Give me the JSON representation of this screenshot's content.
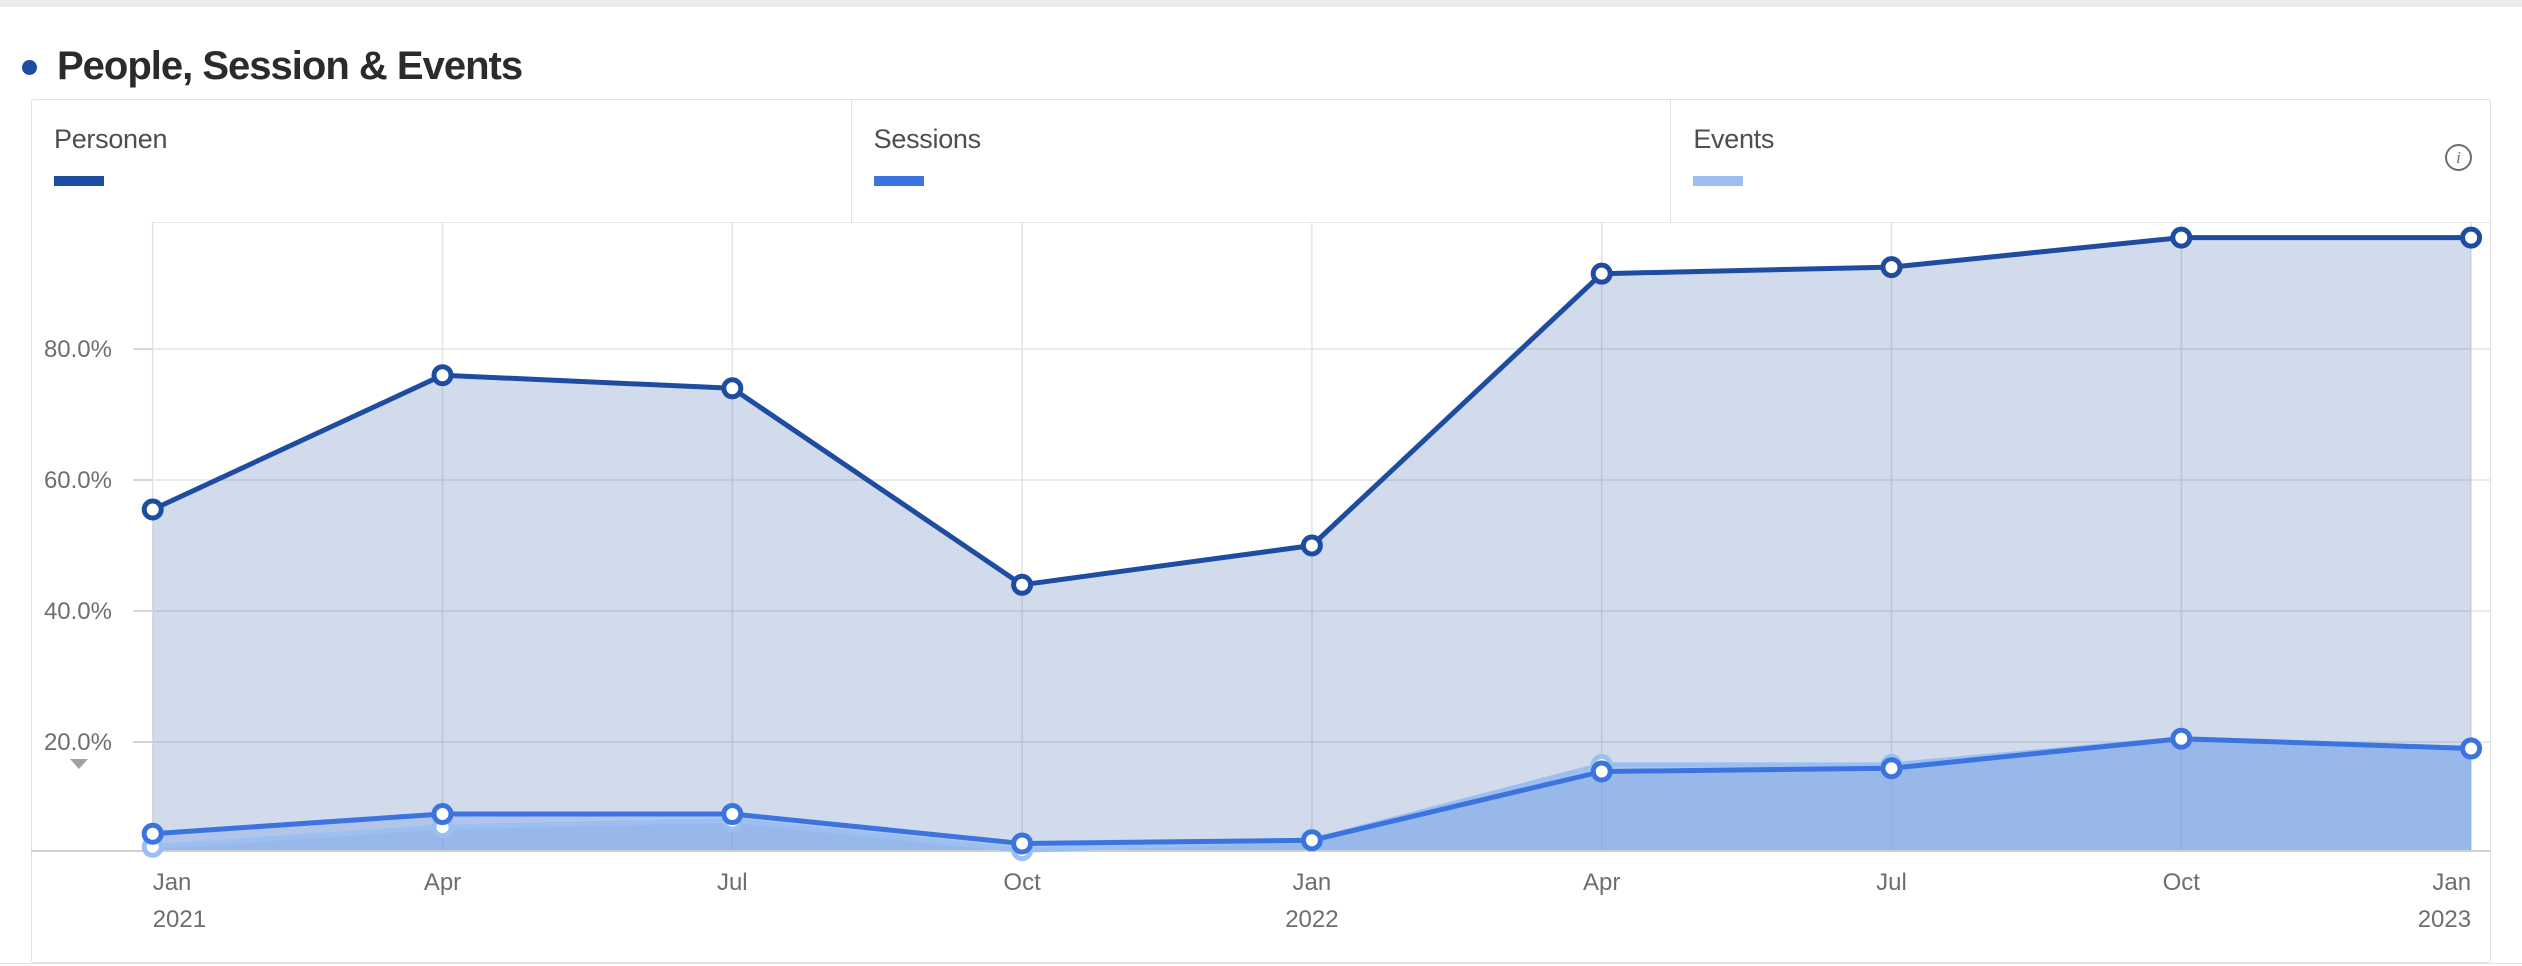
{
  "header": {
    "title": "People, Session & Events",
    "bullet_color": "#1e4ca1"
  },
  "legend": {
    "items": [
      {
        "label": "Personen",
        "color": "#1e4ca1"
      },
      {
        "label": "Sessions",
        "color": "#3b74de"
      },
      {
        "label": "Events",
        "color": "#9abff0"
      }
    ]
  },
  "info_icon": {
    "glyph": "i"
  },
  "chart_data": {
    "type": "area",
    "title": "People, Session & Events",
    "categories": [
      "Jan 2021",
      "Apr 2021",
      "Jul 2021",
      "Oct 2021",
      "Jan 2022",
      "Apr 2022",
      "Jul 2022",
      "Oct 2022",
      "Jan 2023"
    ],
    "x_tick_labels": [
      "Jan",
      "Apr",
      "Jul",
      "Oct",
      "Jan",
      "Apr",
      "Jul",
      "Oct",
      "Jan"
    ],
    "x_year_labels": {
      "0": "2021",
      "4": "2022",
      "8": "2023"
    },
    "series": [
      {
        "name": "Personen",
        "color": "#1e4ca1",
        "fill": "rgba(30,76,161,0.20)",
        "values": [
          55.5,
          76,
          74,
          44,
          50,
          91.5,
          92.5,
          97,
          97
        ]
      },
      {
        "name": "Sessions",
        "color": "#3b74de",
        "fill": "rgba(59,116,222,0.22)",
        "values": [
          6,
          9,
          9,
          4.5,
          5,
          15.5,
          16,
          20.5,
          19
        ]
      },
      {
        "name": "Events",
        "color": "#9abff0",
        "fill": "rgba(154,191,240,0.55)",
        "values": [
          4,
          7,
          8,
          3.5,
          5,
          16.5,
          16.5,
          20.5,
          19
        ]
      }
    ],
    "ytick_values": [
      20,
      40,
      60,
      80
    ],
    "ytick_labels": [
      "20.0%",
      "40.0%",
      "60.0%",
      "80.0%"
    ],
    "ylim_visible": [
      3.4,
      99.4
    ],
    "unit": "%",
    "grid": true,
    "legend_position": "top"
  }
}
